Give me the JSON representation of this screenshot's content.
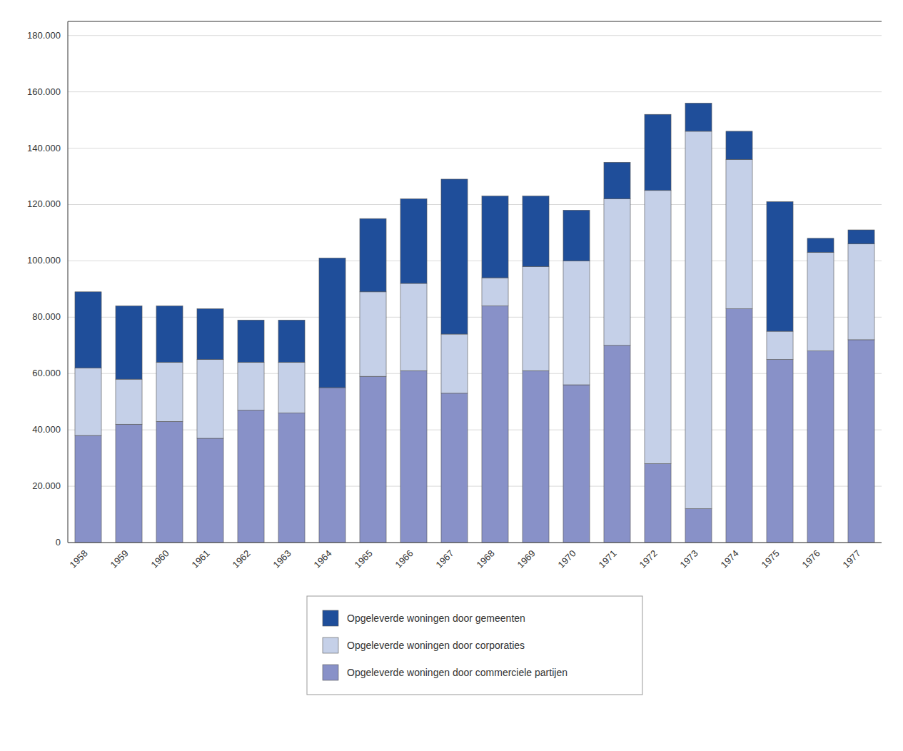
{
  "chart_data": {
    "type": "bar",
    "stacked": true,
    "categories": [
      "1958",
      "1959",
      "1960",
      "1961",
      "1962",
      "1963",
      "1964",
      "1965",
      "1966",
      "1967",
      "1968",
      "1969",
      "1970",
      "1971",
      "1972",
      "1973",
      "1974",
      "1975",
      "1976",
      "1977"
    ],
    "series": [
      {
        "name": "Opgeleverde woningen door commerciele partijen",
        "color": "#8891c8",
        "values": [
          38000,
          42000,
          43000,
          37000,
          47000,
          46000,
          55000,
          59000,
          61000,
          53000,
          84000,
          61000,
          56000,
          70000,
          28000,
          12000,
          83000,
          65000,
          68000,
          72000
        ]
      },
      {
        "name": "Opgeleverde woningen door corporaties",
        "color": "#c5d0e8",
        "values": [
          24000,
          16000,
          21000,
          28000,
          17000,
          18000,
          0,
          30000,
          31000,
          21000,
          10000,
          37000,
          44000,
          52000,
          97000,
          134000,
          53000,
          10000,
          35000,
          34000
        ]
      },
      {
        "name": "Opgeleverde woningen door gemeenten",
        "color": "#1f4e9a",
        "values": [
          27000,
          26000,
          20000,
          18000,
          15000,
          15000,
          46000,
          26000,
          30000,
          55000,
          29000,
          25000,
          18000,
          13000,
          27000,
          10000,
          10000,
          46000,
          5000,
          5000
        ]
      }
    ],
    "ylim": [
      0,
      185000
    ],
    "yticks": [
      0,
      {
        "value": 20000,
        "label": "20.000"
      },
      {
        "value": 40000,
        "label": "40.000"
      },
      {
        "value": 60000,
        "label": "60.000"
      },
      {
        "value": 80000,
        "label": "80.000"
      },
      {
        "value": 100000,
        "label": "100.000"
      },
      {
        "value": 120000,
        "label": "120.000"
      },
      {
        "value": 140000,
        "label": "140.000"
      },
      {
        "value": 160000,
        "label": "160.000"
      },
      {
        "value": 180000,
        "label": "180.000"
      }
    ],
    "grid": true,
    "legend": "bottom"
  }
}
